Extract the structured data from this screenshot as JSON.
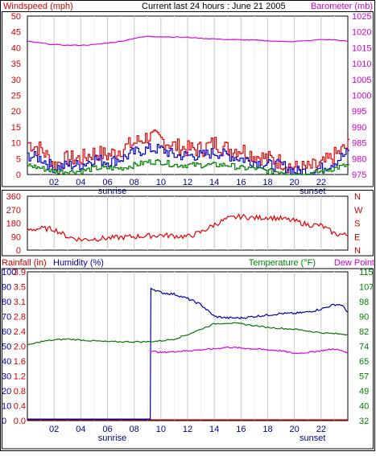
{
  "chart_data": [
    {
      "type": "line",
      "title": "Current last 24 hours : June 21 2005",
      "ylabel_left": "Windspeed (mph)",
      "ylabel_right": "Barometer (mb)",
      "ylim_left": [
        0,
        50
      ],
      "ylim_right": [
        975,
        1025
      ],
      "yticks_left": [
        "0",
        "5",
        "10",
        "15",
        "20",
        "25",
        "30",
        "35",
        "40",
        "45",
        "50"
      ],
      "yticks_right": [
        "975",
        "980",
        "985",
        "990",
        "995",
        "1000",
        "1005",
        "1010",
        "1015",
        "1020",
        "1025"
      ],
      "x_ticks": [
        "02",
        "04",
        "06",
        "08",
        "10",
        "12",
        "14",
        "16",
        "18",
        "20",
        "22"
      ],
      "x_markers": [
        "sunrise",
        "sunset"
      ],
      "x_marker_hours": [
        6,
        21
      ],
      "grid": true,
      "series": [
        {
          "name": "Windspeed (mph)",
          "color": "#e00000",
          "x": [
            0,
            1,
            2,
            3,
            4,
            5,
            6,
            7,
            8,
            9,
            10,
            11,
            12,
            13,
            14,
            15,
            16,
            17,
            18,
            19,
            20,
            21,
            22,
            23,
            24
          ],
          "values": [
            10,
            8,
            3,
            5,
            5,
            7,
            6,
            8,
            10,
            12,
            11,
            9,
            8,
            8,
            10,
            8,
            8,
            6,
            5,
            4,
            2,
            2,
            3,
            6,
            9
          ]
        },
        {
          "name": "",
          "color": "#0000cc",
          "x": [
            0,
            1,
            2,
            3,
            4,
            5,
            6,
            7,
            8,
            9,
            10,
            11,
            12,
            13,
            14,
            15,
            16,
            17,
            18,
            19,
            20,
            21,
            22,
            23,
            24
          ],
          "values": [
            6,
            5,
            2,
            3,
            3,
            5,
            4,
            5,
            7,
            8,
            8,
            6,
            6,
            6,
            7,
            6,
            5,
            4,
            3,
            3,
            1,
            1,
            2,
            4,
            7
          ]
        },
        {
          "name": "",
          "color": "#008000",
          "x": [
            0,
            1,
            2,
            3,
            4,
            5,
            6,
            7,
            8,
            9,
            10,
            11,
            12,
            13,
            14,
            15,
            16,
            17,
            18,
            19,
            20,
            21,
            22,
            23,
            24
          ],
          "values": [
            3,
            2,
            1,
            1,
            1,
            2,
            2,
            2,
            3,
            4,
            4,
            3,
            3,
            3,
            3,
            3,
            2,
            2,
            1,
            1,
            0,
            0,
            1,
            2,
            3
          ]
        },
        {
          "name": "Barometer (mb)",
          "color": "#dd00dd",
          "axis": "right",
          "x": [
            0,
            1,
            2,
            3,
            4,
            5,
            6,
            7,
            8,
            9,
            10,
            11,
            12,
            13,
            14,
            15,
            16,
            17,
            18,
            19,
            20,
            21,
            22,
            23,
            24
          ],
          "values": [
            1017,
            1016.5,
            1016,
            1015.8,
            1015.8,
            1016,
            1016.5,
            1017,
            1018,
            1018.6,
            1018.5,
            1018.4,
            1018.3,
            1018,
            1017.8,
            1017.6,
            1017.5,
            1017.4,
            1017.2,
            1017,
            1017,
            1017.2,
            1017.6,
            1017.5,
            1017
          ]
        }
      ]
    },
    {
      "type": "line",
      "ylim": [
        0,
        360
      ],
      "yticks_left": [
        "0",
        "90",
        "180",
        "270",
        "360"
      ],
      "yticks_right": [
        "N",
        "E",
        "S",
        "W",
        "N"
      ],
      "grid": true,
      "series": [
        {
          "name": "",
          "color": "#e00000",
          "x": [
            0,
            1,
            2,
            3,
            4,
            5,
            6,
            7,
            8,
            9,
            10,
            11,
            12,
            13,
            14,
            15,
            16,
            17,
            18,
            19,
            20,
            21,
            22,
            23,
            24
          ],
          "values": [
            135,
            145,
            140,
            90,
            70,
            75,
            80,
            85,
            90,
            95,
            100,
            95,
            90,
            120,
            170,
            210,
            225,
            215,
            220,
            210,
            195,
            170,
            165,
            110,
            100
          ]
        }
      ]
    },
    {
      "type": "line",
      "ylabel_left1": "Rainfall (in)",
      "ylabel_left2": "Humidity (%)",
      "ylabel_right": "Temperature (°F)",
      "ylabel_right2": "Dew Point",
      "ylim_rain": [
        0,
        3.9
      ],
      "ylim_humidity": [
        0,
        100
      ],
      "ylim_temp": [
        32,
        115
      ],
      "yticks_rain": [
        "0.0",
        "0.4",
        "0.8",
        "1.2",
        "1.6",
        "2.0",
        "2.4",
        "2.8",
        "3.1",
        "3.5",
        "3.9"
      ],
      "yticks_humidity": [
        "0",
        "10",
        "20",
        "30",
        "40",
        "50",
        "60",
        "70",
        "80",
        "90",
        "100"
      ],
      "yticks_temp": [
        "32",
        "40",
        "49",
        "57",
        "65",
        "74",
        "82",
        "90",
        "98",
        "107",
        "115"
      ],
      "x_ticks": [
        "02",
        "04",
        "06",
        "08",
        "10",
        "12",
        "14",
        "16",
        "18",
        "20",
        "22"
      ],
      "x_markers": [
        "sunrise",
        "sunset"
      ],
      "x_marker_hours": [
        6,
        21
      ],
      "grid": true,
      "series": [
        {
          "name": "Humidity (%)",
          "color": "#0000aa",
          "axis": "humidity",
          "x": [
            0,
            9.2,
            9.3,
            10,
            11,
            12,
            13,
            14,
            15,
            16,
            17,
            18,
            19,
            20,
            21,
            22,
            23,
            23.5,
            24
          ],
          "values": [
            1,
            1,
            89,
            86,
            85,
            82,
            78,
            70,
            69,
            69,
            70,
            71,
            72,
            72,
            73,
            75,
            78,
            78,
            73
          ]
        },
        {
          "name": "Temperature (°F)",
          "color": "#007700",
          "axis": "temp",
          "x": [
            0,
            1,
            2,
            3,
            4,
            5,
            6,
            7,
            8,
            9,
            10,
            11,
            12,
            13,
            14,
            15,
            16,
            17,
            18,
            19,
            20,
            21,
            22,
            23,
            24
          ],
          "values": [
            74,
            76,
            77,
            77.5,
            77,
            76.5,
            76,
            76,
            76,
            76,
            76.5,
            77.5,
            80,
            83,
            86,
            86.5,
            86,
            85,
            84,
            83.5,
            83,
            82,
            81,
            80.5,
            80
          ]
        },
        {
          "name": "Dew Point",
          "color": "#dd00dd",
          "axis": "temp",
          "x": [
            9.2,
            10,
            11,
            12,
            13,
            14,
            15,
            16,
            17,
            18,
            19,
            20,
            21,
            22,
            23,
            24
          ],
          "values": [
            71,
            70,
            70.5,
            71,
            71.5,
            72,
            73,
            72.5,
            72,
            71.5,
            71,
            69.5,
            70,
            71,
            72,
            70
          ]
        },
        {
          "name": "Rainfall (in)",
          "color": "#cc0000",
          "axis": "rain",
          "x": [
            0,
            24
          ],
          "values": [
            0,
            0
          ]
        }
      ]
    }
  ]
}
